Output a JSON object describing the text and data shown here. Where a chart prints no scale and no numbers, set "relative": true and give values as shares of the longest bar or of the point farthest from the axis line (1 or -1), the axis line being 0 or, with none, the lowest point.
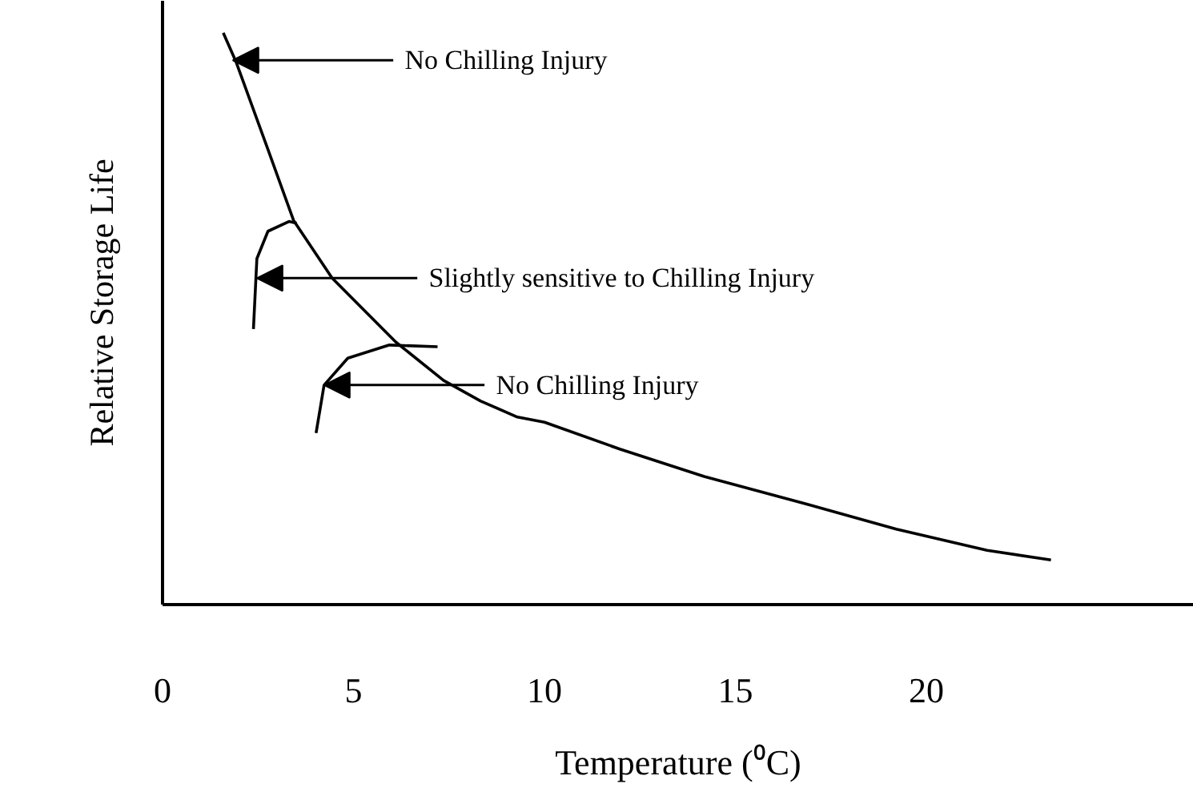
{
  "chart_data": {
    "type": "line",
    "relative": true,
    "xlabel": "Temperature (⁰C)",
    "ylabel": "Relative Storage Life",
    "xlim": [
      0,
      27
    ],
    "xticks": [
      0,
      5,
      10,
      15,
      20
    ],
    "grid": false,
    "marker": "none",
    "line_style": "solid",
    "series": [
      {
        "color": "#000000",
        "x": [
          1.59,
          1.92,
          2.76,
          3.43,
          4.44,
          6.11,
          7.36,
          8.33,
          9.29,
          10.0,
          11.97,
          14.18,
          16.69,
          19.21,
          21.59,
          23.26
        ],
        "values": [
          1.0,
          0.95,
          0.796,
          0.672,
          0.571,
          0.459,
          0.392,
          0.356,
          0.328,
          0.319,
          0.272,
          0.224,
          0.179,
          0.132,
          0.095,
          0.078
        ]
      },
      {
        "color": "#000000",
        "x": [
          2.38,
          2.47,
          2.76,
          3.31,
          3.51
        ],
        "values": [
          0.482,
          0.605,
          0.653,
          0.67,
          0.667
        ]
      },
      {
        "color": "#000000",
        "x": [
          4.02,
          4.23,
          4.85,
          5.94,
          7.2
        ],
        "values": [
          0.3,
          0.384,
          0.431,
          0.454,
          0.451
        ]
      }
    ],
    "annotations": [
      {
        "text": "No Chilling Injury",
        "x": 1.84,
        "y": 0.952
      },
      {
        "text": "Slightly sensitive to Chilling Injury",
        "x": 2.47,
        "y": 0.571
      },
      {
        "text": "No Chilling Injury",
        "x": 4.23,
        "y": 0.384
      }
    ]
  }
}
